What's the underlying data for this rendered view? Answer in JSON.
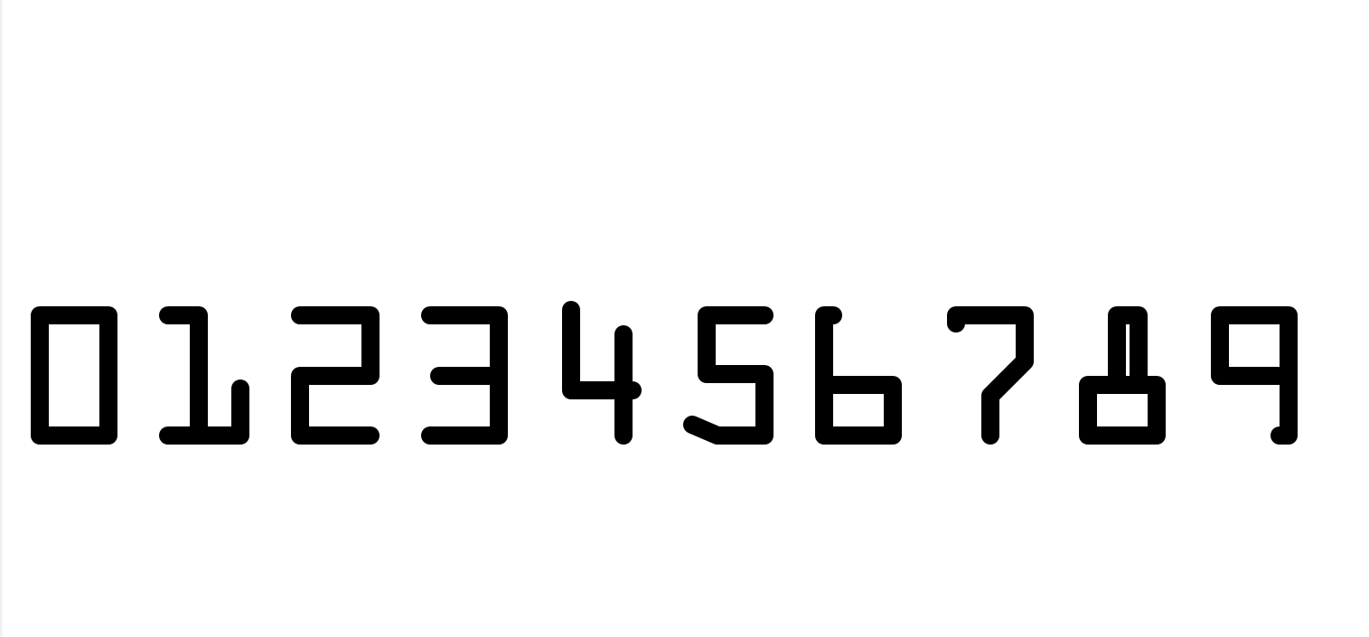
{
  "digits": [
    "0",
    "1",
    "2",
    "3",
    "4",
    "5",
    "6",
    "7",
    "8",
    "9"
  ],
  "colors": {
    "background": "#ffffff",
    "ink": "#000000"
  }
}
